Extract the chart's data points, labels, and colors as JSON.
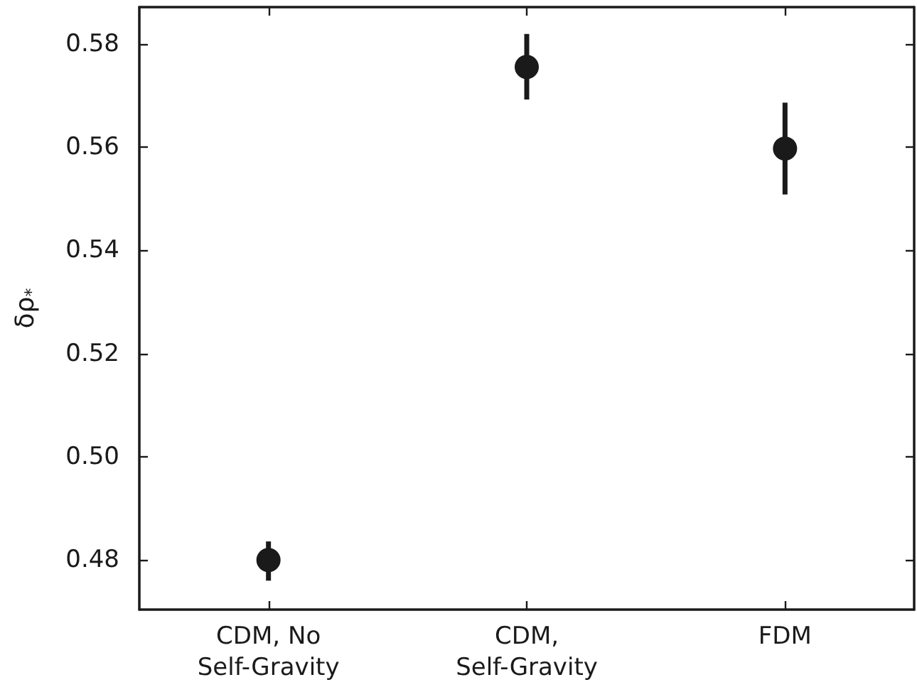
{
  "chart_data": {
    "type": "scatter",
    "ylabel": "δρ$_{*}$",
    "categories": [
      "CDM, No\nSelf-Gravity",
      "CDM,\nSelf-Gravity",
      "FDM"
    ],
    "series": [
      {
        "color": "#1a1a1a",
        "values": [
          0.48,
          0.5755,
          0.5597
        ],
        "errors": [
          [
            0.476,
            0.4836
          ],
          [
            0.5692,
            0.5819
          ],
          [
            0.5508,
            0.5686
          ]
        ]
      }
    ],
    "ylim": [
      0.4704,
      0.5871
    ],
    "yticks": [
      0.48,
      {
        "value": 0.5,
        "label": "0.50"
      },
      0.52,
      0.54,
      0.56,
      0.58
    ],
    "grid": false,
    "legend": false,
    "marker": "circle"
  }
}
